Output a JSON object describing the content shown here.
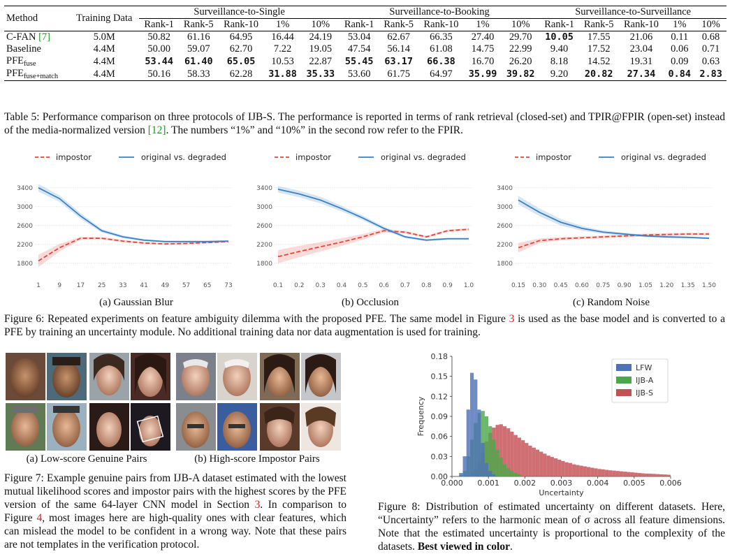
{
  "table": {
    "headers": {
      "method": "Method",
      "training": "Training Data",
      "groups": [
        "Surveillance-to-Single",
        "Surveillance-to-Booking",
        "Surveillance-to-Surveillance"
      ],
      "cols": [
        "Rank-1",
        "Rank-5",
        "Rank-10",
        "1%",
        "10%"
      ]
    },
    "rows": [
      {
        "name_main": "C-FAN",
        "name_cite": "[7]",
        "name_sub": "",
        "data": "5.0M",
        "vals": [
          "50.82",
          "61.16",
          "64.95",
          "16.44",
          "24.19",
          "53.04",
          "62.67",
          "66.35",
          "27.40",
          "29.70",
          "10.05",
          "17.55",
          "21.06",
          "0.11",
          "0.68"
        ],
        "bold": [
          false,
          false,
          false,
          false,
          false,
          false,
          false,
          false,
          false,
          false,
          true,
          false,
          false,
          false,
          false
        ]
      },
      {
        "name_main": "Baseline",
        "name_cite": "",
        "name_sub": "",
        "data": "4.4M",
        "vals": [
          "50.00",
          "59.07",
          "62.70",
          "7.22",
          "19.05",
          "47.54",
          "56.14",
          "61.08",
          "14.75",
          "22.99",
          "9.40",
          "17.52",
          "23.04",
          "0.06",
          "0.71"
        ],
        "bold": [
          false,
          false,
          false,
          false,
          false,
          false,
          false,
          false,
          false,
          false,
          false,
          false,
          false,
          false,
          false
        ]
      },
      {
        "name_main": "PFE",
        "name_cite": "",
        "name_sub": "fuse",
        "data": "4.4M",
        "vals": [
          "53.44",
          "61.40",
          "65.05",
          "10.53",
          "22.87",
          "55.45",
          "63.17",
          "66.38",
          "16.70",
          "26.20",
          "8.18",
          "14.52",
          "19.31",
          "0.09",
          "0.63"
        ],
        "bold": [
          true,
          true,
          true,
          false,
          false,
          true,
          true,
          true,
          false,
          false,
          false,
          false,
          false,
          false,
          false
        ]
      },
      {
        "name_main": "PFE",
        "name_cite": "",
        "name_sub": "fuse+match",
        "data": "4.4M",
        "vals": [
          "50.16",
          "58.33",
          "62.28",
          "31.88",
          "35.33",
          "53.60",
          "61.75",
          "64.97",
          "35.99",
          "39.82",
          "9.20",
          "20.82",
          "27.34",
          "0.84",
          "2.83"
        ],
        "bold": [
          false,
          false,
          false,
          true,
          true,
          false,
          false,
          false,
          true,
          true,
          false,
          true,
          true,
          true,
          true
        ]
      }
    ]
  },
  "captions": {
    "t5_a": "Table 5: Performance comparison on three protocols of IJB-S. The performance is reported in terms of rank retrieval (closed-set) and TPIR@FPIR (open-set) instead of the media-normalized version ",
    "t5_cite": "[12]",
    "t5_b": ". The numbers “1%” and “10%” in the second row refer to the FPIR.",
    "f6_a": "Figure 6: Repeated experiments on feature ambiguity dilemma with the proposed PFE. The same model in Figure ",
    "f6_ref": "3",
    "f6_b": " is used as the base model and is converted to a PFE by training an uncertainty module. No additional training data nor data augmentation is used for training.",
    "f7_a": "Figure 7: Example genuine pairs from IJB-A dataset estimated with the lowest mutual likelihood scores and impostor pairs with the highest scores by the PFE version of the same 64-layer CNN model in Section ",
    "f7_ref1": "3",
    "f7_b": ". In comparison to Figure ",
    "f7_ref2": "4",
    "f7_c": ", most images here are high-quality ones with clear features, which can mislead the model to be confident in a wrong way. Note that these pairs are not templates in the verification protocol.",
    "f7_sub_a": "(a) Low-score Genuine Pairs",
    "f7_sub_b": "(b) High-score Impostor Pairs",
    "f8_a": "Figure 8: Distribution of estimated uncertainty on different datasets. Here, “Uncertainty” refers to the harmonic mean of σ across all feature dimensions. Note that the estimated uncertainty is proportional to the complexity of the datasets. ",
    "f8_bold": "Best viewed in color",
    "f8_end": "."
  },
  "chart_data": [
    {
      "type": "line",
      "subcaption": "(a) Gaussian Blur",
      "legend": [
        "impostor",
        "original vs. degraded"
      ],
      "x": [
        1,
        9,
        17,
        25,
        33,
        41,
        49,
        57,
        65,
        73
      ],
      "xticks": [
        "1",
        "9",
        "17",
        "25",
        "33",
        "41",
        "49",
        "57",
        "65",
        "73"
      ],
      "yticks": [
        1800,
        2200,
        2600,
        3000,
        3400
      ],
      "ylim": [
        1650,
        3560
      ],
      "series": [
        {
          "name": "impostor",
          "values": [
            1850,
            2130,
            2330,
            2330,
            2270,
            2230,
            2210,
            2220,
            2240,
            2260
          ],
          "band": [
            130,
            80,
            30,
            25,
            25,
            20,
            20,
            20,
            20,
            20
          ],
          "color": "#e0463c",
          "dash": true
        },
        {
          "name": "original vs. degraded",
          "values": [
            3400,
            3170,
            2800,
            2490,
            2360,
            2290,
            2260,
            2260,
            2260,
            2270
          ],
          "band": [
            80,
            70,
            60,
            40,
            30,
            25,
            20,
            20,
            20,
            20
          ],
          "color": "#3a81c4",
          "dash": false
        }
      ]
    },
    {
      "type": "line",
      "subcaption": "(b) Occlusion",
      "legend": [
        "impostor",
        "original vs. degraded"
      ],
      "x": [
        0.1,
        0.2,
        0.3,
        0.4,
        0.5,
        0.6,
        0.7,
        0.8,
        0.9,
        1.0
      ],
      "xticks": [
        "0.1",
        "0.2",
        "0.3",
        "0.4",
        "0.5",
        "0.6",
        "0.7",
        "0.8",
        "0.9",
        "1.0"
      ],
      "yticks": [
        1800,
        2200,
        2600,
        3000,
        3400
      ],
      "ylim": [
        1650,
        3560
      ],
      "series": [
        {
          "name": "impostor",
          "values": [
            1940,
            2050,
            2150,
            2250,
            2360,
            2490,
            2460,
            2360,
            2490,
            2520
          ],
          "band": [
            140,
            120,
            100,
            80,
            60,
            40,
            30,
            25,
            25,
            25
          ],
          "color": "#e0463c",
          "dash": true
        },
        {
          "name": "original vs. degraded",
          "values": [
            3370,
            3270,
            3140,
            2960,
            2760,
            2540,
            2360,
            2290,
            2320,
            2320
          ],
          "band": [
            70,
            70,
            70,
            60,
            50,
            40,
            30,
            25,
            20,
            20
          ],
          "color": "#3a81c4",
          "dash": false
        }
      ]
    },
    {
      "type": "line",
      "subcaption": "(c) Random Noise",
      "legend": [
        "impostor",
        "original vs. degraded"
      ],
      "x": [
        0.15,
        0.3,
        0.45,
        0.6,
        0.75,
        0.9,
        1.05,
        1.2,
        1.35,
        1.5
      ],
      "xticks": [
        "0.15",
        "0.30",
        "0.45",
        "0.60",
        "0.75",
        "0.90",
        "1.05",
        "1.20",
        "1.35",
        "1.50"
      ],
      "yticks": [
        1800,
        2200,
        2600,
        3000,
        3400
      ],
      "ylim": [
        1650,
        3560
      ],
      "series": [
        {
          "name": "impostor",
          "values": [
            2130,
            2280,
            2320,
            2340,
            2360,
            2380,
            2400,
            2410,
            2420,
            2420
          ],
          "band": [
            100,
            50,
            35,
            30,
            30,
            30,
            30,
            30,
            30,
            30
          ],
          "color": "#e0463c",
          "dash": true
        },
        {
          "name": "original vs. degraded",
          "values": [
            3140,
            2880,
            2670,
            2540,
            2460,
            2420,
            2380,
            2360,
            2350,
            2330
          ],
          "band": [
            90,
            80,
            70,
            50,
            35,
            30,
            25,
            25,
            20,
            20
          ],
          "color": "#3a81c4",
          "dash": false
        }
      ]
    },
    {
      "type": "bar",
      "subtype": "histogram",
      "xlabel": "Uncertainty",
      "ylabel": "Frequency",
      "xlim": [
        0,
        0.006
      ],
      "ylim": [
        0,
        0.18
      ],
      "xticks": [
        "0.000",
        "0.001",
        "0.002",
        "0.003",
        "0.004",
        "0.005",
        "0.006"
      ],
      "yticks": [
        "0.00",
        "0.03",
        "0.06",
        "0.09",
        "0.12",
        "0.15",
        "0.18"
      ],
      "legend_position": "top-right",
      "series": [
        {
          "name": "LFW",
          "color": "#4e72b8",
          "bin_start": 0.0002,
          "bin_width": 0.0001,
          "values": [
            0.005,
            0.03,
            0.1,
            0.155,
            0.145,
            0.1,
            0.05,
            0.02,
            0.008,
            0.003
          ]
        },
        {
          "name": "IJB-A",
          "color": "#4aa84a",
          "bin_start": 0.0002,
          "bin_width": 0.0001,
          "values": [
            0.002,
            0.008,
            0.03,
            0.055,
            0.08,
            0.095,
            0.098,
            0.09,
            0.075,
            0.055,
            0.04,
            0.028,
            0.018,
            0.012,
            0.008,
            0.005,
            0.003
          ]
        },
        {
          "name": "IJB-S",
          "color": "#c44f55",
          "bin_start": 0.0005,
          "bin_width": 0.0001,
          "values": [
            0.005,
            0.01,
            0.02,
            0.035,
            0.052,
            0.065,
            0.073,
            0.077,
            0.078,
            0.075,
            0.072,
            0.067,
            0.062,
            0.058,
            0.054,
            0.05,
            0.046,
            0.043,
            0.04,
            0.037,
            0.034,
            0.031,
            0.029,
            0.027,
            0.025,
            0.023,
            0.021,
            0.02,
            0.018,
            0.017,
            0.016,
            0.015,
            0.014,
            0.013,
            0.012,
            0.011,
            0.0105,
            0.0098,
            0.009,
            0.0085,
            0.008,
            0.0075,
            0.007,
            0.0065,
            0.006,
            0.0055,
            0.005,
            0.0046,
            0.0042,
            0.004,
            0.0037,
            0.0034,
            0.0031,
            0.0028,
            0.0025
          ]
        }
      ]
    }
  ]
}
